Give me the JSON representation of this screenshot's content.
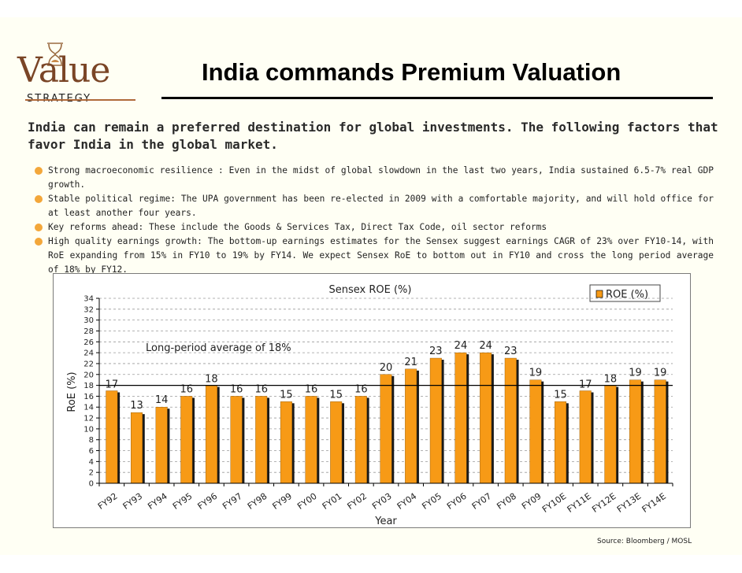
{
  "logo": {
    "word": "Value",
    "tagline": "STRATEGY"
  },
  "title": "India commands Premium Valuation",
  "intro": "India can remain a preferred destination for global investments. The following factors that favor India in the global market.",
  "bullets": [
    "Strong macroeconomic resilience : Even in the midst of global slowdown in the last two years, India sustained 6.5-7% real GDP growth.",
    "Stable political regime: The UPA government has been re-elected in 2009 with a comfortable majority, and will hold office for at least another four years.",
    "Key reforms ahead: These include the Goods & Services Tax, Direct Tax Code, oil sector reforms",
    "High quality earnings growth: The bottom-up earnings estimates for the Sensex suggest earnings CAGR of 23% over FY10-14, with RoE expanding from 15% in FY10 to 19% by FY14. We expect Sensex RoE to bottom out in FY10 and cross the long period average of 18% by FY12."
  ],
  "chart_data": {
    "type": "bar",
    "title": "Sensex ROE (%)",
    "xlabel": "Year",
    "ylabel": "RoE (%)",
    "categories": [
      "FY92",
      "FY93",
      "FY94",
      "FY95",
      "FY96",
      "FY97",
      "FY98",
      "FY99",
      "FY00",
      "FY01",
      "FY02",
      "FY03",
      "FY04",
      "FY05",
      "FY06",
      "FY07",
      "FY08",
      "FY09",
      "FY10E",
      "FY11E",
      "FY12E",
      "FY13E",
      "FY14E"
    ],
    "series": [
      {
        "name": "ROE (%)",
        "values": [
          17,
          13,
          14,
          16,
          18,
          16,
          16,
          15,
          16,
          15,
          16,
          20,
          21,
          23,
          24,
          24,
          23,
          19,
          15,
          17,
          18,
          19,
          19
        ]
      }
    ],
    "ylim": [
      0,
      34
    ],
    "yticks": [
      0,
      2,
      4,
      6,
      8,
      10,
      12,
      14,
      16,
      18,
      20,
      22,
      24,
      26,
      28,
      30,
      32,
      34
    ],
    "grid": true,
    "legend_position": "top-right",
    "reference_line": {
      "value": 18,
      "label": "Long-period average of 18%"
    },
    "bar_color": "#f79a16",
    "bar_shadow_color": "#1a1a1a"
  },
  "source": "Source: Bloomberg / MOSL"
}
